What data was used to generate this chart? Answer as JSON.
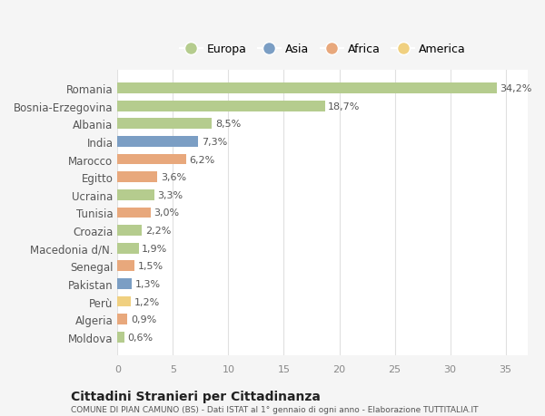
{
  "countries": [
    "Romania",
    "Bosnia-Erzegovina",
    "Albania",
    "India",
    "Marocco",
    "Egitto",
    "Ucraina",
    "Tunisia",
    "Croazia",
    "Macedonia d/N.",
    "Senegal",
    "Pakistan",
    "Perù",
    "Algeria",
    "Moldova"
  ],
  "values": [
    34.2,
    18.7,
    8.5,
    7.3,
    6.2,
    3.6,
    3.3,
    3.0,
    2.2,
    1.9,
    1.5,
    1.3,
    1.2,
    0.9,
    0.6
  ],
  "labels": [
    "34,2%",
    "18,7%",
    "8,5%",
    "7,3%",
    "6,2%",
    "3,6%",
    "3,3%",
    "3,0%",
    "2,2%",
    "1,9%",
    "1,5%",
    "1,3%",
    "1,2%",
    "0,9%",
    "0,6%"
  ],
  "continents": [
    "Europa",
    "Europa",
    "Europa",
    "Asia",
    "Africa",
    "Africa",
    "Europa",
    "Africa",
    "Europa",
    "Europa",
    "Africa",
    "Asia",
    "America",
    "Africa",
    "Europa"
  ],
  "colors": {
    "Europa": "#b5cc8e",
    "Asia": "#7b9ec4",
    "Africa": "#e8a87c",
    "America": "#f0d080"
  },
  "legend_order": [
    "Europa",
    "Asia",
    "Africa",
    "America"
  ],
  "title": "Cittadini Stranieri per Cittadinanza",
  "subtitle": "COMUNE DI PIAN CAMUNO (BS) - Dati ISTAT al 1° gennaio di ogni anno - Elaborazione TUTTITALIA.IT",
  "xlim": [
    0,
    37
  ],
  "xticks": [
    0,
    5,
    10,
    15,
    20,
    25,
    30,
    35
  ],
  "background_color": "#f5f5f5",
  "plot_bg_color": "#ffffff",
  "grid_color": "#e0e0e0",
  "bar_height": 0.6
}
